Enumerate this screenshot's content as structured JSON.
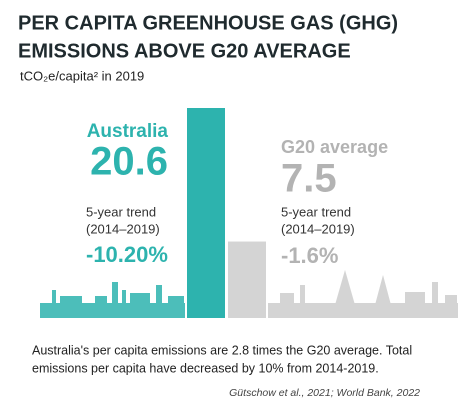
{
  "chart_data": {
    "type": "bar",
    "title": [
      "PER CAPITA GREENHOUSE GAS (GHG)",
      "EMISSIONS ABOVE G20 AVERAGE"
    ],
    "subtitle": "tCO₂e/capita² in 2019",
    "categories": [
      "Australia",
      "G20 average"
    ],
    "values": [
      20.6,
      7.5
    ],
    "colors": [
      "#2db3ae",
      "#d4d4d4"
    ],
    "trends": [
      {
        "label": "5-year trend",
        "period": "(2014–2019)",
        "change": "-10.20%"
      },
      {
        "label": "5-year trend",
        "period": "(2014–2019)",
        "change": "-1.6%"
      }
    ],
    "caption": [
      "Australia's per capita emissions are 2.8 times the G20 average. Total",
      "emissions per capita have decreased by 10% from 2014-2019."
    ],
    "source": "Gütschow et al., 2021; World Bank, 2022"
  }
}
